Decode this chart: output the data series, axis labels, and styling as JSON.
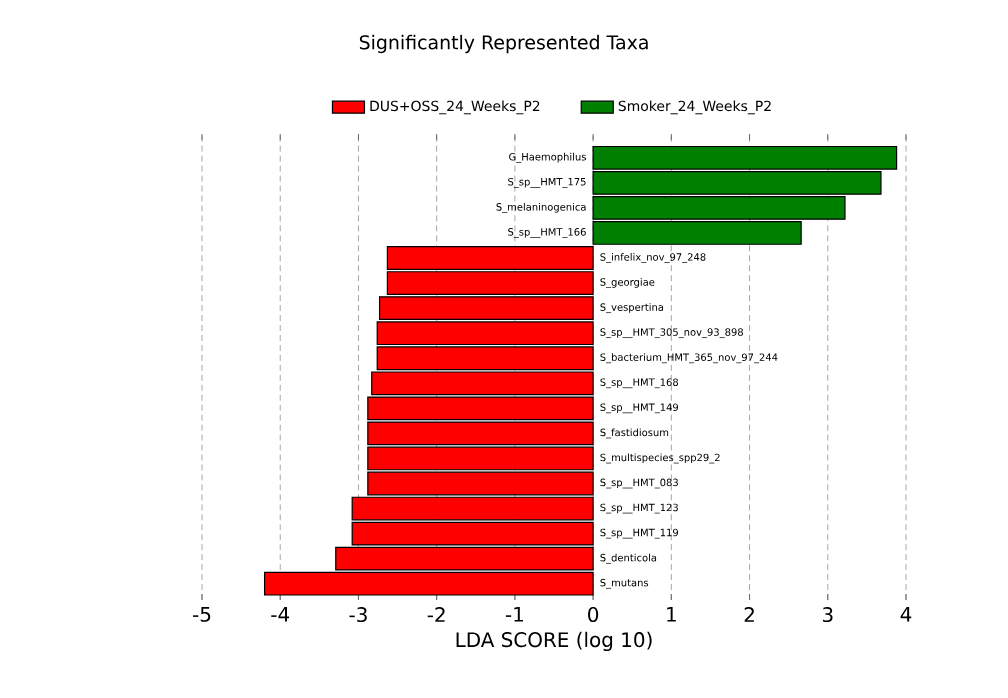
{
  "chart_data": {
    "type": "bar",
    "orientation": "horizontal",
    "title": "Significantly Represented Taxa",
    "xlabel": "LDA SCORE (log 10)",
    "categories": [
      "G_Haemophilus",
      "S_sp__HMT_175",
      "S_melaninogenica",
      "S_sp__HMT_166",
      "S_infelix_nov_97_248",
      "S_georgiae",
      "S_vespertina",
      "S_sp__HMT_305_nov_93_898",
      "S_bacterium_HMT_365_nov_97_244",
      "S_sp__HMT_168",
      "S_sp__HMT_149",
      "S_fastidiosum",
      "S_multispecies_spp29_2",
      "S_sp__HMT_083",
      "S_sp__HMT_123",
      "S_sp__HMT_119",
      "S_denticola",
      "S_mutans"
    ],
    "series": [
      {
        "name": "DUS+OSS_24_Weeks_P2",
        "color": "#ff0000",
        "values": [
          null,
          null,
          null,
          null,
          -2.63,
          -2.63,
          -2.73,
          -2.76,
          -2.76,
          -2.83,
          -2.88,
          -2.88,
          -2.88,
          -2.88,
          -3.08,
          -3.08,
          -3.29,
          -4.2
        ]
      },
      {
        "name": "Smoker_24_Weeks_P2",
        "color": "#008000",
        "values": [
          3.88,
          3.68,
          3.22,
          2.66,
          null,
          null,
          null,
          null,
          null,
          null,
          null,
          null,
          null,
          null,
          null,
          null,
          null,
          null
        ]
      }
    ],
    "xlim": [
      -5,
      4
    ],
    "xticks": [
      -5,
      -4,
      -3,
      -2,
      -1,
      0,
      1,
      2,
      3,
      4
    ],
    "grid": "x",
    "legend": "top"
  }
}
